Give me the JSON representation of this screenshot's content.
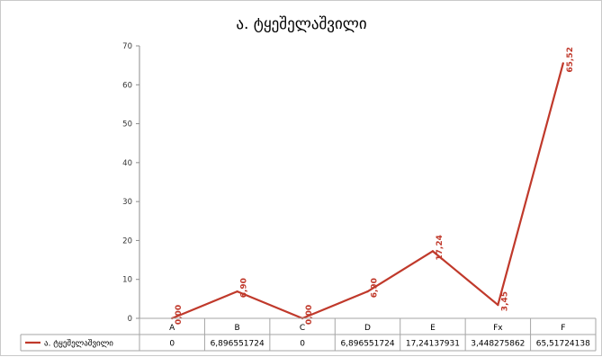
{
  "chart_data": {
    "type": "line",
    "title": "ა. ტყეშელაშვილი",
    "categories": [
      "A",
      "B",
      "C",
      "D",
      "E",
      "Fx",
      "F"
    ],
    "series": [
      {
        "name": "ა. ტყეშელაშვილი",
        "values": [
          0,
          6.896551724,
          0,
          6.896551724,
          17.24137931,
          3.448275862,
          65.51724138
        ],
        "labels": [
          "0,00",
          "6,90",
          "0,00",
          "6,90",
          "17,24",
          "3,45",
          "65,52"
        ],
        "table_values": [
          "0",
          "6,896551724",
          "0",
          "6,896551724",
          "17,24137931",
          "3,448275862",
          "65,51724138"
        ],
        "color": "#c0392b"
      }
    ],
    "ylim": [
      0,
      70
    ],
    "yticks": [
      0,
      10,
      20,
      30,
      40,
      50,
      60,
      70
    ],
    "grid": false,
    "legend": "data-table"
  }
}
